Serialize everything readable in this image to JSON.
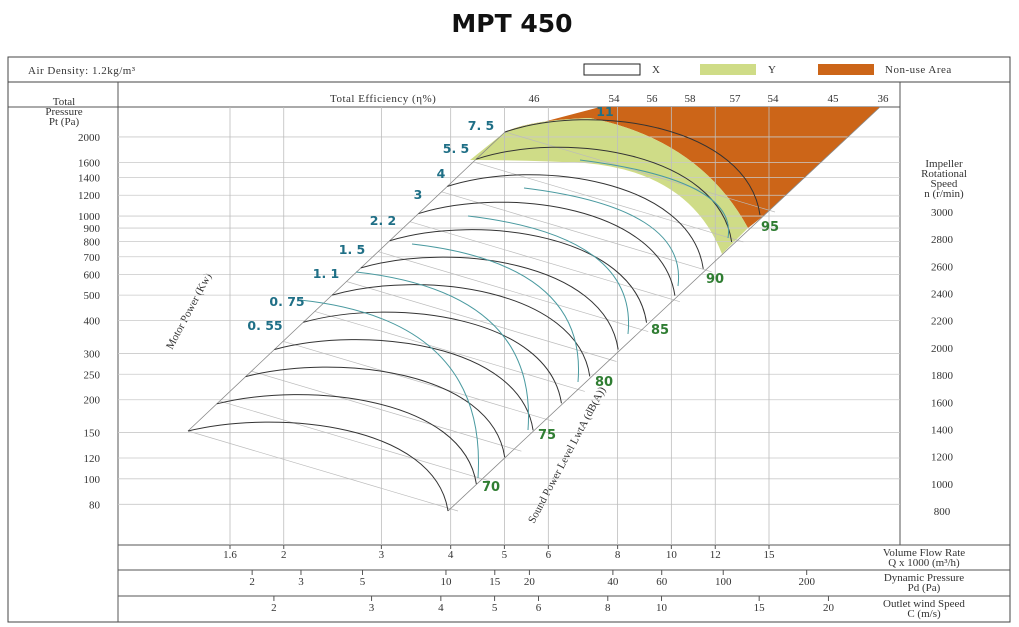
{
  "chart_data": {
    "type": "line",
    "title": "MPT 450",
    "air_density": "Air Density:  1.2kg/m³",
    "legend": [
      {
        "label": "X",
        "color": "#ffffff"
      },
      {
        "label": "Y",
        "color": "#cfdc87"
      },
      {
        "label": "Non-use Area",
        "color": "#cc6518"
      }
    ],
    "ylabel": "Total Pressure Pt (Pa)",
    "ylabel_lines": [
      "Total",
      "Pressure",
      "Pt (Pa)"
    ],
    "y_ticks": [
      80,
      100,
      120,
      150,
      200,
      250,
      300,
      400,
      500,
      600,
      700,
      800,
      900,
      1000,
      1200,
      1400,
      1600,
      2000
    ],
    "ylim": [
      65,
      2600
    ],
    "y_scale": "log",
    "xlabel": "Volume Flow Rate Q x 1000 (m³/h)",
    "xlabel_lines": [
      "Volume Flow Rate",
      "Q x 1000 (m³/h)"
    ],
    "x_ticks": [
      "1.6",
      "2",
      "3",
      "4",
      "5",
      "6",
      "8",
      "10",
      "12",
      "15"
    ],
    "x_scale": "log",
    "efficiency_label": "Total Efficiency (η%)",
    "efficiency_values": [
      "46",
      "54",
      "56",
      "58",
      "57",
      "54",
      "45",
      "36"
    ],
    "motor_power_label": "Motor Power (Kw)",
    "motor_powers": [
      "0. 55",
      "0. 75",
      "1. 1",
      "1. 5",
      "2. 2",
      "3",
      "4",
      "5. 5",
      "7. 5",
      "11"
    ],
    "speed_label_lines": [
      "Impeller",
      "Rotational",
      "Speed",
      "n (r/min)"
    ],
    "speed_ticks": [
      "3000",
      "2800",
      "2600",
      "2400",
      "2200",
      "2000",
      "1800",
      "1600",
      "1400",
      "1200",
      "1000",
      "800"
    ],
    "sound_label": "Sound Power Level LwtA (dB(A))",
    "sound_levels": [
      "70",
      "75",
      "80",
      "85",
      "90",
      "95"
    ],
    "dynamic_pressure": {
      "label_lines": [
        "Dynamic Pressure",
        "Pd (Pa)"
      ],
      "ticks": [
        "2",
        "3",
        "5",
        "10",
        "15",
        "20",
        "40",
        "60",
        "100",
        "200"
      ]
    },
    "outlet_speed": {
      "label_lines": [
        "Outlet wind Speed",
        "C (m/s)"
      ],
      "ticks": [
        "2",
        "3",
        "4",
        "5",
        "6",
        "8",
        "10",
        "15",
        "20"
      ]
    },
    "grid": true
  }
}
